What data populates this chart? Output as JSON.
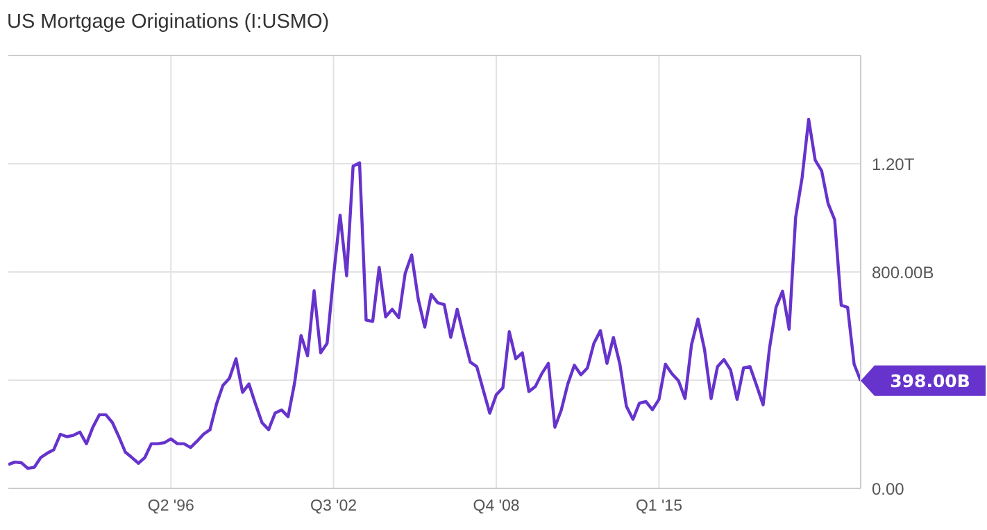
{
  "chart_data": {
    "type": "line",
    "title": "US Mortgage Originations (I:USMO)",
    "x": [
      "1990-01",
      "1990-04",
      "1990-07",
      "1990-10",
      "1991-01",
      "1991-04",
      "1991-07",
      "1991-10",
      "1992-01",
      "1992-04",
      "1992-07",
      "1992-10",
      "1993-01",
      "1993-04",
      "1993-07",
      "1993-10",
      "1994-01",
      "1994-04",
      "1994-07",
      "1994-10",
      "1995-01",
      "1995-04",
      "1995-07",
      "1995-10",
      "1996-01",
      "1996-04",
      "1996-07",
      "1996-10",
      "1997-01",
      "1997-04",
      "1997-07",
      "1997-10",
      "1998-01",
      "1998-04",
      "1998-07",
      "1998-10",
      "1999-01",
      "1999-04",
      "1999-07",
      "1999-10",
      "2000-01",
      "2000-04",
      "2000-07",
      "2000-10",
      "2001-01",
      "2001-04",
      "2001-07",
      "2001-10",
      "2002-01",
      "2002-04",
      "2002-07",
      "2002-10",
      "2003-01",
      "2003-04",
      "2003-07",
      "2003-10",
      "2004-01",
      "2004-04",
      "2004-07",
      "2004-10",
      "2005-01",
      "2005-04",
      "2005-07",
      "2005-10",
      "2006-01",
      "2006-04",
      "2006-07",
      "2006-10",
      "2007-01",
      "2007-04",
      "2007-07",
      "2007-10",
      "2008-01",
      "2008-04",
      "2008-07",
      "2008-10",
      "2009-01",
      "2009-04",
      "2009-07",
      "2009-10",
      "2010-01",
      "2010-04",
      "2010-07",
      "2010-10",
      "2011-01",
      "2011-04",
      "2011-07",
      "2011-10",
      "2012-01",
      "2012-04",
      "2012-07",
      "2012-10",
      "2013-01",
      "2013-04",
      "2013-07",
      "2013-10",
      "2014-01",
      "2014-04",
      "2014-07",
      "2014-10",
      "2015-01",
      "2015-04",
      "2015-07",
      "2015-10",
      "2016-01",
      "2016-04",
      "2016-07",
      "2016-10",
      "2017-01",
      "2017-04",
      "2017-07",
      "2017-10",
      "2018-01",
      "2018-04",
      "2018-07",
      "2018-10",
      "2019-01",
      "2019-04",
      "2019-07",
      "2019-10",
      "2020-01",
      "2020-04",
      "2020-07",
      "2020-10",
      "2021-01",
      "2021-04",
      "2021-07",
      "2021-10",
      "2022-01",
      "2022-04",
      "2022-07",
      "2022-10"
    ],
    "series": [
      {
        "color": "#6633cc",
        "values": [
          88000000000.0,
          97000000000.0,
          95000000000.0,
          74000000000.0,
          78000000000.0,
          114000000000.0,
          130000000000.0,
          143000000000.0,
          200000000000.0,
          191000000000.0,
          196000000000.0,
          208000000000.0,
          165000000000.0,
          226000000000.0,
          272000000000.0,
          272000000000.0,
          243000000000.0,
          191000000000.0,
          134000000000.0,
          114000000000.0,
          93000000000.0,
          114000000000.0,
          165000000000.0,
          165000000000.0,
          169000000000.0,
          183000000000.0,
          165000000000.0,
          165000000000.0,
          151000000000.0,
          174000000000.0,
          200000000000.0,
          217000000000.0,
          312000000000.0,
          381000000000.0,
          407000000000.0,
          479000000000.0,
          355000000000.0,
          386000000000.0,
          312000000000.0,
          243000000000.0,
          217000000000.0,
          278000000000.0,
          290000000000.0,
          265000000000.0,
          391000000000.0,
          565000000000.0,
          490000000000.0,
          730000000000.0,
          501000000000.0,
          536000000000.0,
          786000000000.0,
          1010000000000.0,
          786000000000.0,
          1191000000000.0,
          1203000000000.0,
          622000000000.0,
          617000000000.0,
          817000000000.0,
          634000000000.0,
          662000000000.0,
          631000000000.0,
          795000000000.0,
          863000000000.0,
          700000000000.0,
          596000000000.0,
          717000000000.0,
          686000000000.0,
          679000000000.0,
          558000000000.0,
          662000000000.0,
          562000000000.0,
          467000000000.0,
          450000000000.0,
          363000000000.0,
          278000000000.0,
          346000000000.0,
          372000000000.0,
          579000000000.0,
          479000000000.0,
          501000000000.0,
          358000000000.0,
          376000000000.0,
          424000000000.0,
          462000000000.0,
          226000000000.0,
          290000000000.0,
          386000000000.0,
          455000000000.0,
          420000000000.0,
          445000000000.0,
          536000000000.0,
          583000000000.0,
          462000000000.0,
          558000000000.0,
          459000000000.0,
          303000000000.0,
          255000000000.0,
          315000000000.0,
          321000000000.0,
          291000000000.0,
          329000000000.0,
          459000000000.0,
          424000000000.0,
          398000000000.0,
          332000000000.0,
          531000000000.0,
          626000000000.0,
          513000000000.0,
          332000000000.0,
          450000000000.0,
          476000000000.0,
          438000000000.0,
          329000000000.0,
          445000000000.0,
          450000000000.0,
          381000000000.0,
          309000000000.0,
          519000000000.0,
          669000000000.0,
          729000000000.0,
          588000000000.0,
          1001000000000.0,
          1148000000000.0,
          1364000000000.0,
          1213000000000.0,
          1174000000000.0,
          1053000000000.0,
          993000000000.0,
          677000000000.0,
          669000000000.0,
          459000000000.0,
          398000000000.0
        ]
      }
    ],
    "xlim": [
      "1990-01",
      "2022-10"
    ],
    "xticks": [
      {
        "value": "1996-04",
        "label": "Q2 '96"
      },
      {
        "value": "2002-07",
        "label": "Q3 '02"
      },
      {
        "value": "2008-10",
        "label": "Q4 '08"
      },
      {
        "value": "2015-01",
        "label": "Q1 '15"
      }
    ],
    "ylim": [
      0,
      1600000000000.0
    ],
    "yticks": [
      {
        "value": 0,
        "label": "0.00"
      },
      {
        "value": 400000000000.0,
        "label": null
      },
      {
        "value": 800000000000.0,
        "label": "800.00B"
      },
      {
        "value": 1200000000000.0,
        "label": "1.20T"
      }
    ],
    "annotations": [
      {
        "text": "398.00B",
        "x": "2022-10",
        "y": 398000000000.0
      }
    ],
    "grid": true,
    "marker": "none",
    "line_style": "solid"
  }
}
